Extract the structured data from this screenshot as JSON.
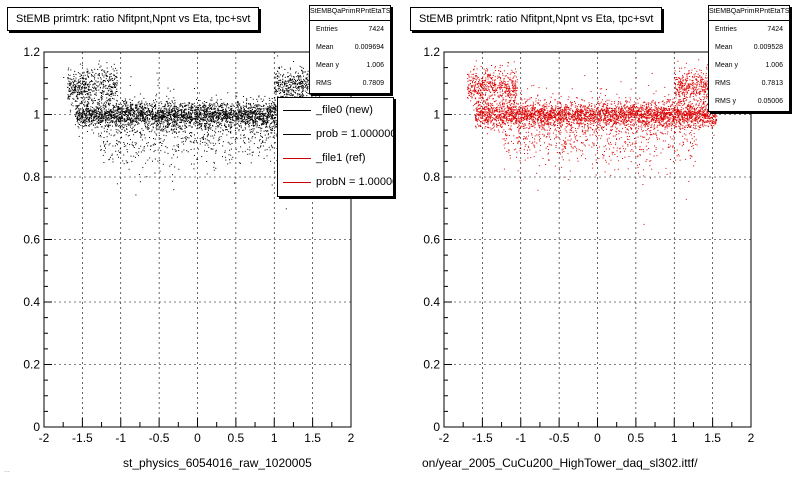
{
  "footnote": "...",
  "panels": [
    {
      "id": "left",
      "title": "StEMB primtrk: ratio Nfitpnt,Npnt vs Eta, tpc+svt",
      "xaxis_title": "st_physics_6054016_raw_1020005",
      "stats": {
        "name": "StEMBQaPrimRPntEtaTS",
        "rows": [
          {
            "label": "Entries",
            "value": "7424"
          },
          {
            "label": "Mean",
            "value": "0.009694"
          },
          {
            "label": "Mean y",
            "value": "1.006"
          },
          {
            "label": "RMS",
            "value": "0.7809"
          }
        ]
      },
      "legend": [
        {
          "label": "_file0 (new)",
          "color": "#000000"
        },
        {
          "label": "prob = 1.000000",
          "color": "#000000"
        },
        {
          "label": "_file1 (ref)",
          "color": "#cc0000"
        },
        {
          "label": "probN = 1.000000",
          "color": "#cc0000"
        }
      ]
    },
    {
      "id": "right",
      "title": "StEMB primtrk: ratio Nfitpnt,Npnt vs Eta, tpc+svt",
      "xaxis_title": "on/year_2005_CuCu200_HighTower_daq_sl302.ittf/",
      "stats": {
        "name": "StEMBQaPrimRPntEtaTS",
        "rows": [
          {
            "label": "Entries",
            "value": "7424"
          },
          {
            "label": "Mean",
            "value": "0.009528"
          },
          {
            "label": "Mean y",
            "value": "1.006"
          },
          {
            "label": "RMS",
            "value": "0.7813"
          },
          {
            "label": "RMS y",
            "value": "0.05006"
          }
        ]
      }
    }
  ],
  "chart_data": [
    {
      "type": "scatter",
      "title": "StEMB primtrk: ratio Nfitpnt,Npnt vs Eta, tpc+svt",
      "xlabel": "st_physics_6054016_raw_1020005",
      "ylabel": "",
      "xlim": [
        -2,
        2
      ],
      "ylim": [
        0,
        1.2
      ],
      "x_ticks": [
        "-2",
        "-1.5",
        "-1",
        "-0.5",
        "0",
        "0.5",
        "1",
        "1.5",
        "2"
      ],
      "y_ticks": [
        "0",
        "0.2",
        "0.4",
        "0.6",
        "0.8",
        "1",
        "1.2"
      ],
      "grid": true,
      "marker_color": "#000000",
      "entries": 7424,
      "mean_x": 0.009694,
      "mean_y": 1.006,
      "rms_x": 0.7809,
      "series": [
        {
          "name": "_file0 (new)",
          "bands": [
            {
              "x_range": [
                -1.6,
                1.55
              ],
              "y_center": 1.0,
              "y_spread": 0.02
            },
            {
              "x_range": [
                -1.7,
                -1.05
              ],
              "y_center": 1.09,
              "y_spread": 0.03
            },
            {
              "x_range": [
                1.0,
                1.6
              ],
              "y_center": 1.09,
              "y_spread": 0.03
            },
            {
              "x_range": [
                -1.3,
                1.3
              ],
              "y_center": 0.95,
              "y_spread": 0.06
            }
          ],
          "outliers": [
            [
              -1.75,
              1.12
            ],
            [
              1.15,
              0.7
            ],
            [
              0.35,
              0.88
            ],
            [
              -1.05,
              0.78
            ],
            [
              1.0,
              0.82
            ]
          ]
        }
      ]
    },
    {
      "type": "scatter",
      "title": "StEMB primtrk: ratio Nfitpnt,Npnt vs Eta, tpc+svt",
      "xlabel": "on/year_2005_CuCu200_HighTower_daq_sl302.ittf/",
      "ylabel": "",
      "xlim": [
        -2,
        2
      ],
      "ylim": [
        0,
        1.2
      ],
      "x_ticks": [
        "-2",
        "-1.5",
        "-1",
        "-0.5",
        "0",
        "0.5",
        "1",
        "1.5",
        "2"
      ],
      "y_ticks": [
        "0",
        "0.2",
        "0.4",
        "0.6",
        "0.8",
        "1",
        "1.2"
      ],
      "grid": true,
      "marker_color": "#dd0000",
      "entries": 7424,
      "mean_x": 0.009528,
      "mean_y": 1.006,
      "rms_x": 0.7813,
      "rms_y": 0.05006,
      "series": [
        {
          "name": "_file1 (ref)",
          "bands": [
            {
              "x_range": [
                -1.6,
                1.55
              ],
              "y_center": 1.0,
              "y_spread": 0.02
            },
            {
              "x_range": [
                -1.7,
                -1.05
              ],
              "y_center": 1.09,
              "y_spread": 0.03
            },
            {
              "x_range": [
                1.0,
                1.6
              ],
              "y_center": 1.09,
              "y_spread": 0.03
            },
            {
              "x_range": [
                -1.3,
                1.3
              ],
              "y_center": 0.95,
              "y_spread": 0.06
            }
          ],
          "outliers": [
            [
              -1.7,
              1.13
            ],
            [
              0.6,
              0.65
            ],
            [
              1.15,
              0.73
            ],
            [
              -1.0,
              0.79
            ],
            [
              0.9,
              0.81
            ]
          ]
        }
      ]
    }
  ]
}
